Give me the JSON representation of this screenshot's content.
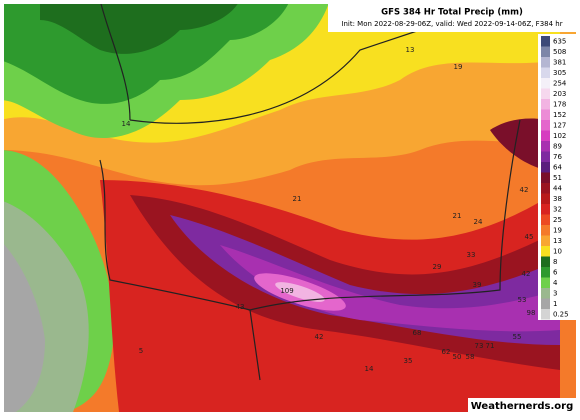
{
  "header": {
    "title": "GFS 384 Hr Total Precip (mm)",
    "subtitle": "Init: Mon 2022-08-29-06Z, valid: Wed 2022-09-14-06Z, F384 hr"
  },
  "colorbar": [
    {
      "label": 635,
      "color": "#3d4a78"
    },
    {
      "label": 508,
      "color": "#7d86a8"
    },
    {
      "label": 381,
      "color": "#b4b6d2"
    },
    {
      "label": 305,
      "color": "#d8d8ec"
    },
    {
      "label": 254,
      "color": "#f4f0f8"
    },
    {
      "label": 203,
      "color": "#f6d8ee"
    },
    {
      "label": 178,
      "color": "#f2b4e2"
    },
    {
      "label": 152,
      "color": "#ec8cd6"
    },
    {
      "label": 127,
      "color": "#e466cc"
    },
    {
      "label": 102,
      "color": "#d63cc0"
    },
    {
      "label": 89,
      "color": "#a830b0"
    },
    {
      "label": 76,
      "color": "#7e2aa0"
    },
    {
      "label": 64,
      "color": "#5a1e7e"
    },
    {
      "label": 51,
      "color": "#7a0f2a"
    },
    {
      "label": 44,
      "color": "#9a1420"
    },
    {
      "label": 38,
      "color": "#b81a1a"
    },
    {
      "label": 32,
      "color": "#d82420"
    },
    {
      "label": 25,
      "color": "#ec4a22"
    },
    {
      "label": 19,
      "color": "#f47a2a"
    },
    {
      "label": 13,
      "color": "#f8a632"
    },
    {
      "label": 10,
      "color": "#f8e020"
    },
    {
      "label": 8,
      "color": "#1e6e1e"
    },
    {
      "label": 6,
      "color": "#2e9a2e"
    },
    {
      "label": 4,
      "color": "#6ed04a"
    },
    {
      "label": 3,
      "color": "#9ab88e"
    },
    {
      "label": 1,
      "color": "#a6a6a6"
    },
    {
      "label": 0.25,
      "color": "#d4d4d4"
    }
  ],
  "map_labels": [
    13,
    19,
    14,
    21,
    42,
    21,
    24,
    45,
    33,
    29,
    42,
    109,
    39,
    53,
    43,
    42,
    98,
    68,
    55,
    73,
    71,
    62,
    50,
    58,
    35,
    14,
    5
  ],
  "watermark": "Weathernerds.org"
}
